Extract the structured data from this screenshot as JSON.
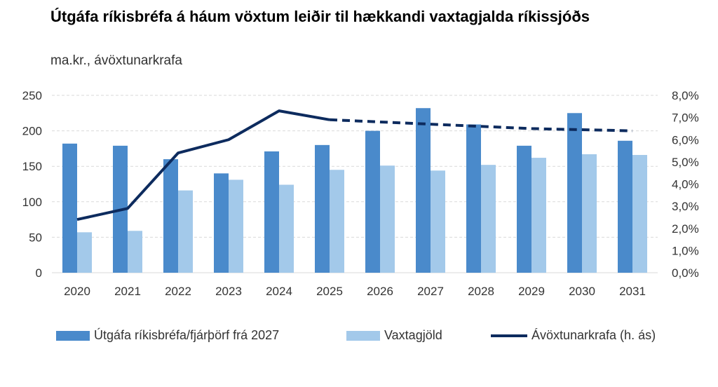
{
  "title": "Útgáfa ríkisbréfa á háum vöxtum leiðir til hækkandi vaxtagjalda ríkissjóðs",
  "subtitle": "ma.kr., ávöxtunarkrafa",
  "colors": {
    "issuance": "#4a8acb",
    "interest": "#a3c9ea",
    "yield": "#0d2b5e",
    "grid": "#d9d9d9"
  },
  "chart_data": {
    "type": "bar",
    "categories": [
      "2020",
      "2021",
      "2022",
      "2023",
      "2024",
      "2025",
      "2026",
      "2027",
      "2028",
      "2029",
      "2030",
      "2031"
    ],
    "series": [
      {
        "name": "Útgáfa ríkisbréfa/fjárþörf frá 2027",
        "type": "bar",
        "axis": "left",
        "values": [
          182,
          179,
          160,
          140,
          171,
          180,
          200,
          232,
          209,
          179,
          225,
          186
        ]
      },
      {
        "name": "Vaxtagjöld",
        "type": "bar",
        "axis": "left",
        "values": [
          57,
          59,
          116,
          131,
          124,
          145,
          151,
          144,
          152,
          162,
          167,
          166
        ]
      },
      {
        "name": "Ávöxtunarkrafa (h. ás)",
        "type": "line",
        "axis": "right",
        "values": [
          2.4,
          2.9,
          5.4,
          6.0,
          7.3,
          6.9,
          6.8,
          6.7,
          6.6,
          6.5,
          6.45,
          6.4
        ],
        "dashed_from_index": 5
      }
    ],
    "y_left": {
      "min": 0,
      "max": 250,
      "ticks": [
        "0",
        "50",
        "100",
        "150",
        "200",
        "250"
      ]
    },
    "y_right": {
      "min": 0,
      "max": 8,
      "ticks": [
        "0,0%",
        "1,0%",
        "2,0%",
        "3,0%",
        "4,0%",
        "5,0%",
        "6,0%",
        "7,0%",
        "8,0%"
      ]
    },
    "grid": true,
    "legend_position": "bottom"
  }
}
